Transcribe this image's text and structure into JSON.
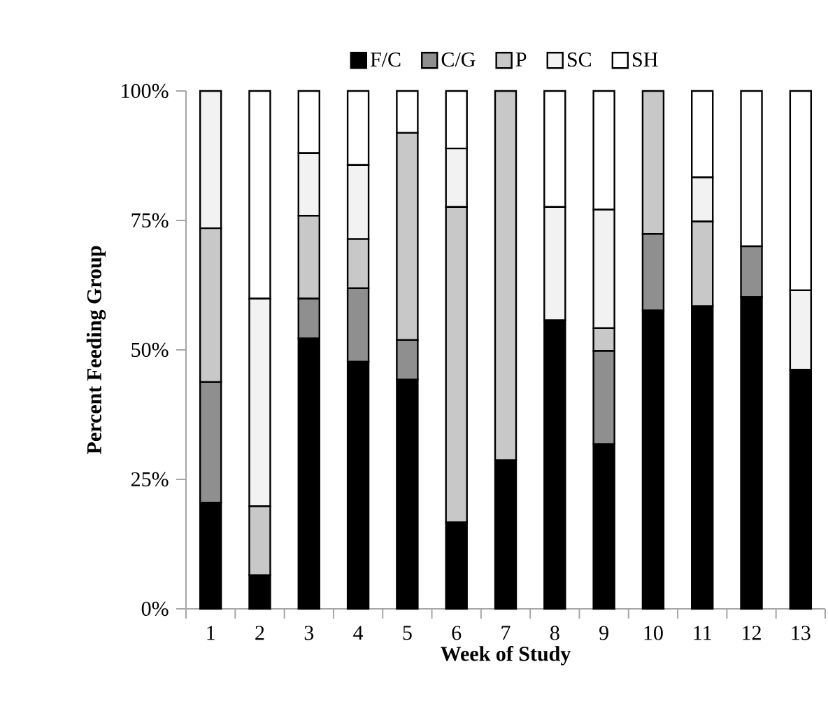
{
  "chart_data": {
    "type": "bar",
    "stacked": true,
    "xlabel": "Week of Study",
    "ylabel": "Percent Feeding Group",
    "categories": [
      "1",
      "2",
      "3",
      "4",
      "5",
      "6",
      "7",
      "8",
      "9",
      "10",
      "11",
      "12",
      "13"
    ],
    "series": [
      {
        "name": "F/C",
        "color": "#000000",
        "values": [
          20.5,
          6.5,
          52.2,
          47.7,
          44.3,
          16.7,
          28.7,
          55.7,
          31.8,
          57.6,
          58.4,
          60.2,
          46.2
        ]
      },
      {
        "name": "C/G",
        "color": "#8f8f8f",
        "values": [
          23.3,
          0,
          7.7,
          14.2,
          7.6,
          0,
          0,
          0,
          18.0,
          14.8,
          0,
          9.8,
          0
        ]
      },
      {
        "name": "P",
        "color": "#c8c8c8",
        "values": [
          29.7,
          13.3,
          16.0,
          9.5,
          40.0,
          60.9,
          71.3,
          0,
          4.4,
          27.6,
          16.4,
          0,
          0
        ]
      },
      {
        "name": "SC",
        "color": "#f2f2f2",
        "values": [
          26.5,
          40.1,
          12.1,
          14.3,
          0,
          11.3,
          0,
          21.9,
          22.9,
          0,
          8.5,
          0,
          15.3
        ]
      },
      {
        "name": "SH",
        "color": "#ffffff",
        "values": [
          0,
          40.1,
          12.0,
          14.3,
          8.1,
          11.1,
          0,
          22.4,
          22.9,
          0,
          16.7,
          30.0,
          38.5
        ]
      }
    ],
    "ylim": [
      0,
      100
    ],
    "yticks": [
      {
        "value": 0,
        "label": "0%"
      },
      {
        "value": 25,
        "label": "25%"
      },
      {
        "value": 50,
        "label": "50%"
      },
      {
        "value": 75,
        "label": "75%"
      },
      {
        "value": 100,
        "label": "100%"
      }
    ],
    "grid": false,
    "legend": "top"
  }
}
